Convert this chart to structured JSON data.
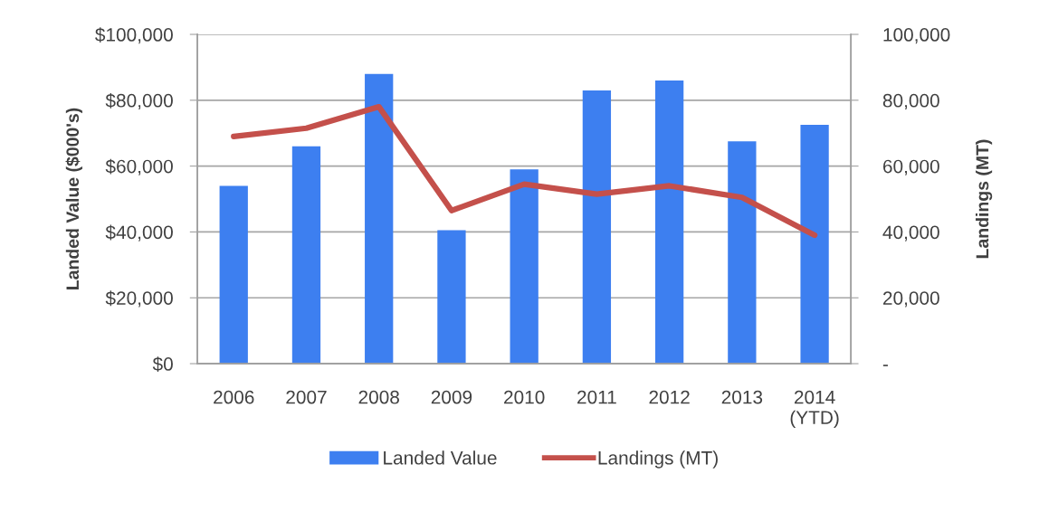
{
  "chart_data": {
    "type": "bar",
    "categories": [
      "2006",
      "2007",
      "2008",
      "2009",
      "2010",
      "2011",
      "2012",
      "2013",
      "2014\n(YTD)"
    ],
    "series": [
      {
        "name": "Landed Value",
        "color": "#3d7ff0",
        "values": [
          54000,
          66000,
          88000,
          40500,
          59000,
          83000,
          86000,
          67500,
          72500
        ]
      },
      {
        "name": "Landings (MT)",
        "type": "line",
        "axis": "y2",
        "color": "#c4504b",
        "values": [
          69000,
          71500,
          78000,
          46500,
          54500,
          51500,
          54000,
          50500,
          39000
        ]
      }
    ],
    "ylabel": "Landed Value ($000's)",
    "y2label": "Landings (MT)",
    "ylim": [
      0,
      100000
    ],
    "yticks": [
      {
        "value": 0,
        "label": "$0"
      },
      {
        "value": 20000,
        "label": "$20,000"
      },
      {
        "value": 40000,
        "label": "$40,000"
      },
      {
        "value": 60000,
        "label": "$60,000"
      },
      {
        "value": 80000,
        "label": "$80,000"
      },
      {
        "value": 100000,
        "label": "$100,000"
      }
    ],
    "y2lim": [
      0,
      100000
    ],
    "y2ticks": [
      {
        "value": 0,
        "label": "-"
      },
      {
        "value": 20000,
        "label": "20,000"
      },
      {
        "value": 40000,
        "label": "40,000"
      },
      {
        "value": 60000,
        "label": "60,000"
      },
      {
        "value": 80000,
        "label": "80,000"
      },
      {
        "value": 100000,
        "label": "100,000"
      }
    ],
    "grid": "y",
    "legend": "bottom"
  }
}
